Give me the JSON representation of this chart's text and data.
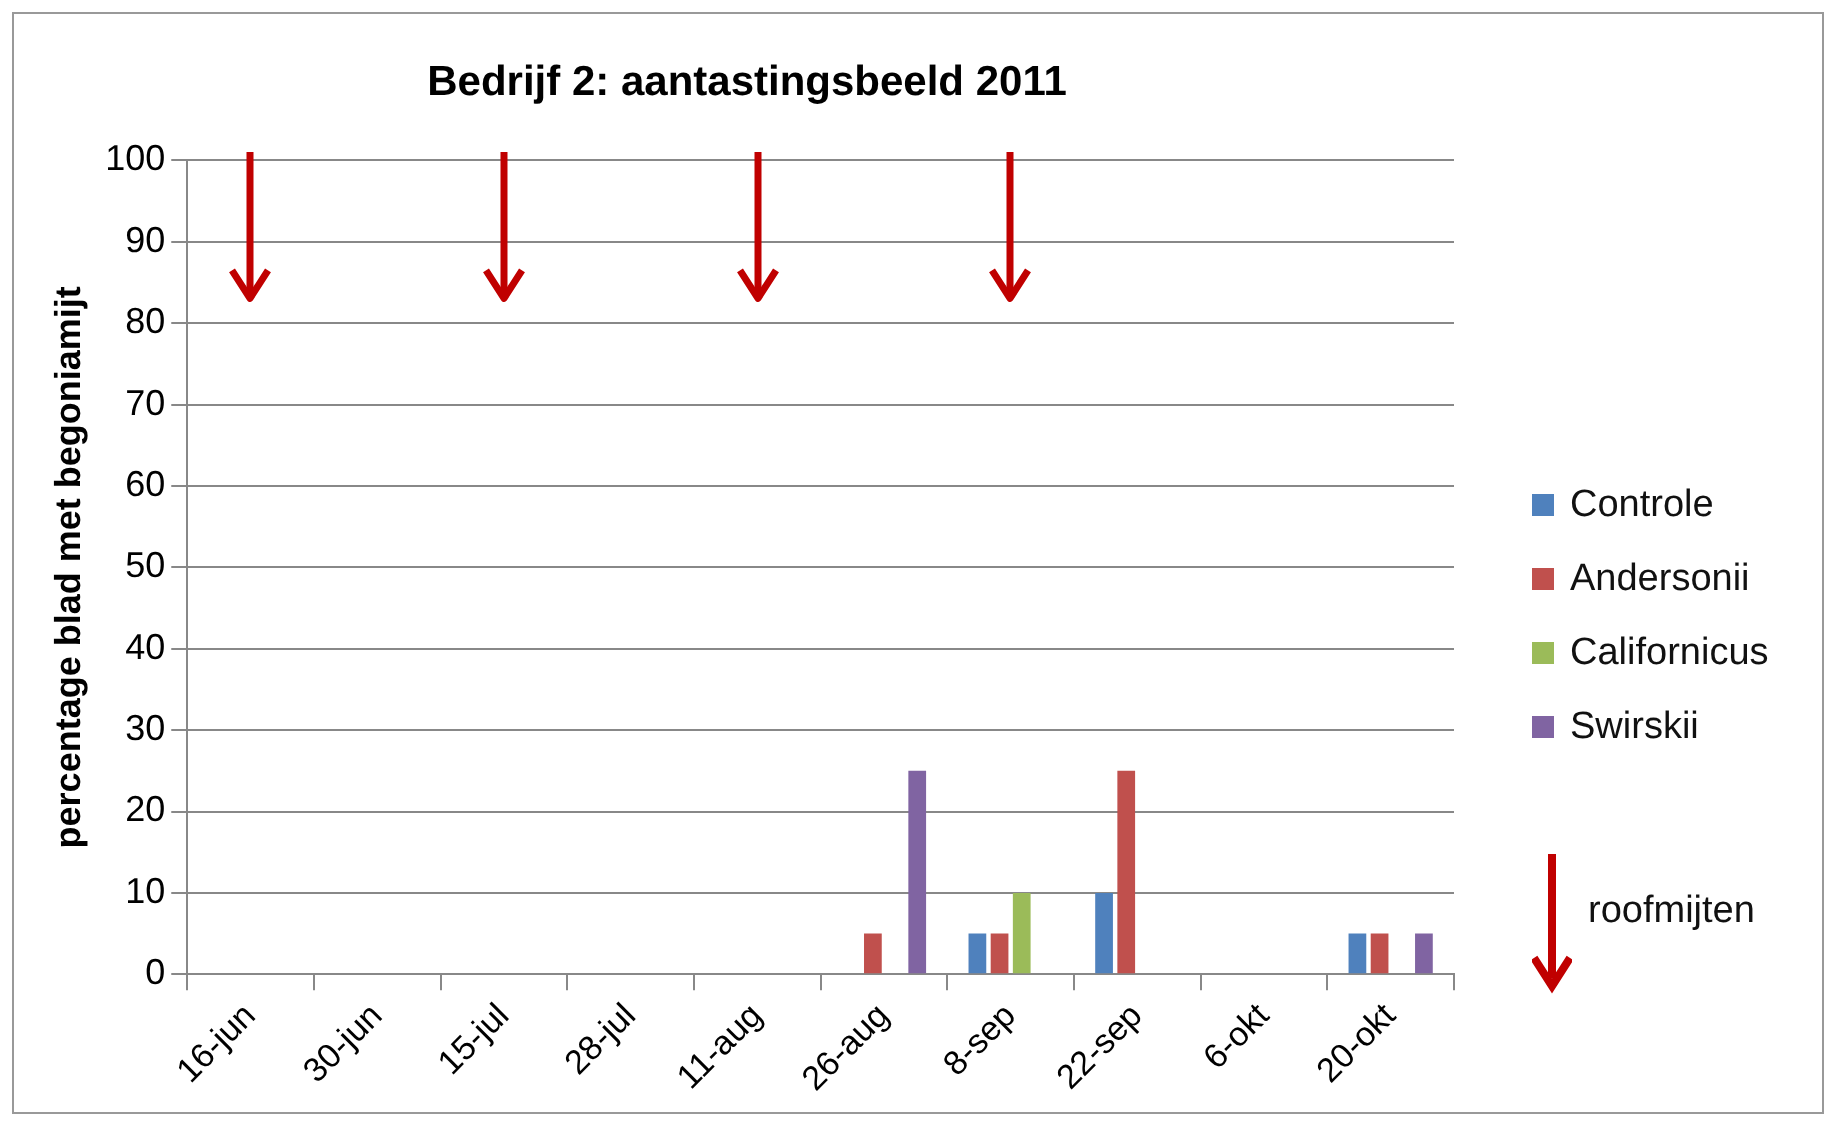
{
  "chart_data": {
    "type": "bar",
    "title": "Bedrijf 2: aantastingsbeeld 2011",
    "ylabel": "percentage blad met begoniamijt",
    "categories": [
      "16-jun",
      "30-jun",
      "15-jul",
      "28-jul",
      "11-aug",
      "26-aug",
      "8-sep",
      "22-sep",
      "6-okt",
      "20-okt"
    ],
    "series": [
      {
        "name": "Controle",
        "color": "#4f81bd",
        "values": [
          0,
          0,
          0,
          0,
          0,
          0,
          5,
          10,
          0,
          5
        ]
      },
      {
        "name": "Andersonii",
        "color": "#c0504d",
        "values": [
          0,
          0,
          0,
          0,
          0,
          5,
          5,
          25,
          0,
          5
        ]
      },
      {
        "name": "Californicus",
        "color": "#9bbb59",
        "values": [
          0,
          0,
          0,
          0,
          0,
          0,
          10,
          0,
          0,
          0
        ]
      },
      {
        "name": "Swirskii",
        "color": "#8064a2",
        "values": [
          0,
          0,
          0,
          0,
          0,
          25,
          0,
          0,
          0,
          5
        ]
      }
    ],
    "ylim": [
      0,
      100
    ],
    "yticks": [
      0,
      10,
      20,
      30,
      40,
      50,
      60,
      70,
      80,
      90,
      100
    ],
    "grid": "y",
    "legend": "right",
    "ref_lines": [
      {
        "axis": "x",
        "value": "16-jun",
        "color": "#c00000"
      },
      {
        "axis": "x",
        "value": "15-jul",
        "color": "#c00000"
      },
      {
        "axis": "x",
        "value": "11-aug",
        "color": "#c00000"
      },
      {
        "axis": "x",
        "value": "8-sep",
        "color": "#c00000"
      }
    ],
    "annotations": [
      "roofmijten"
    ]
  }
}
